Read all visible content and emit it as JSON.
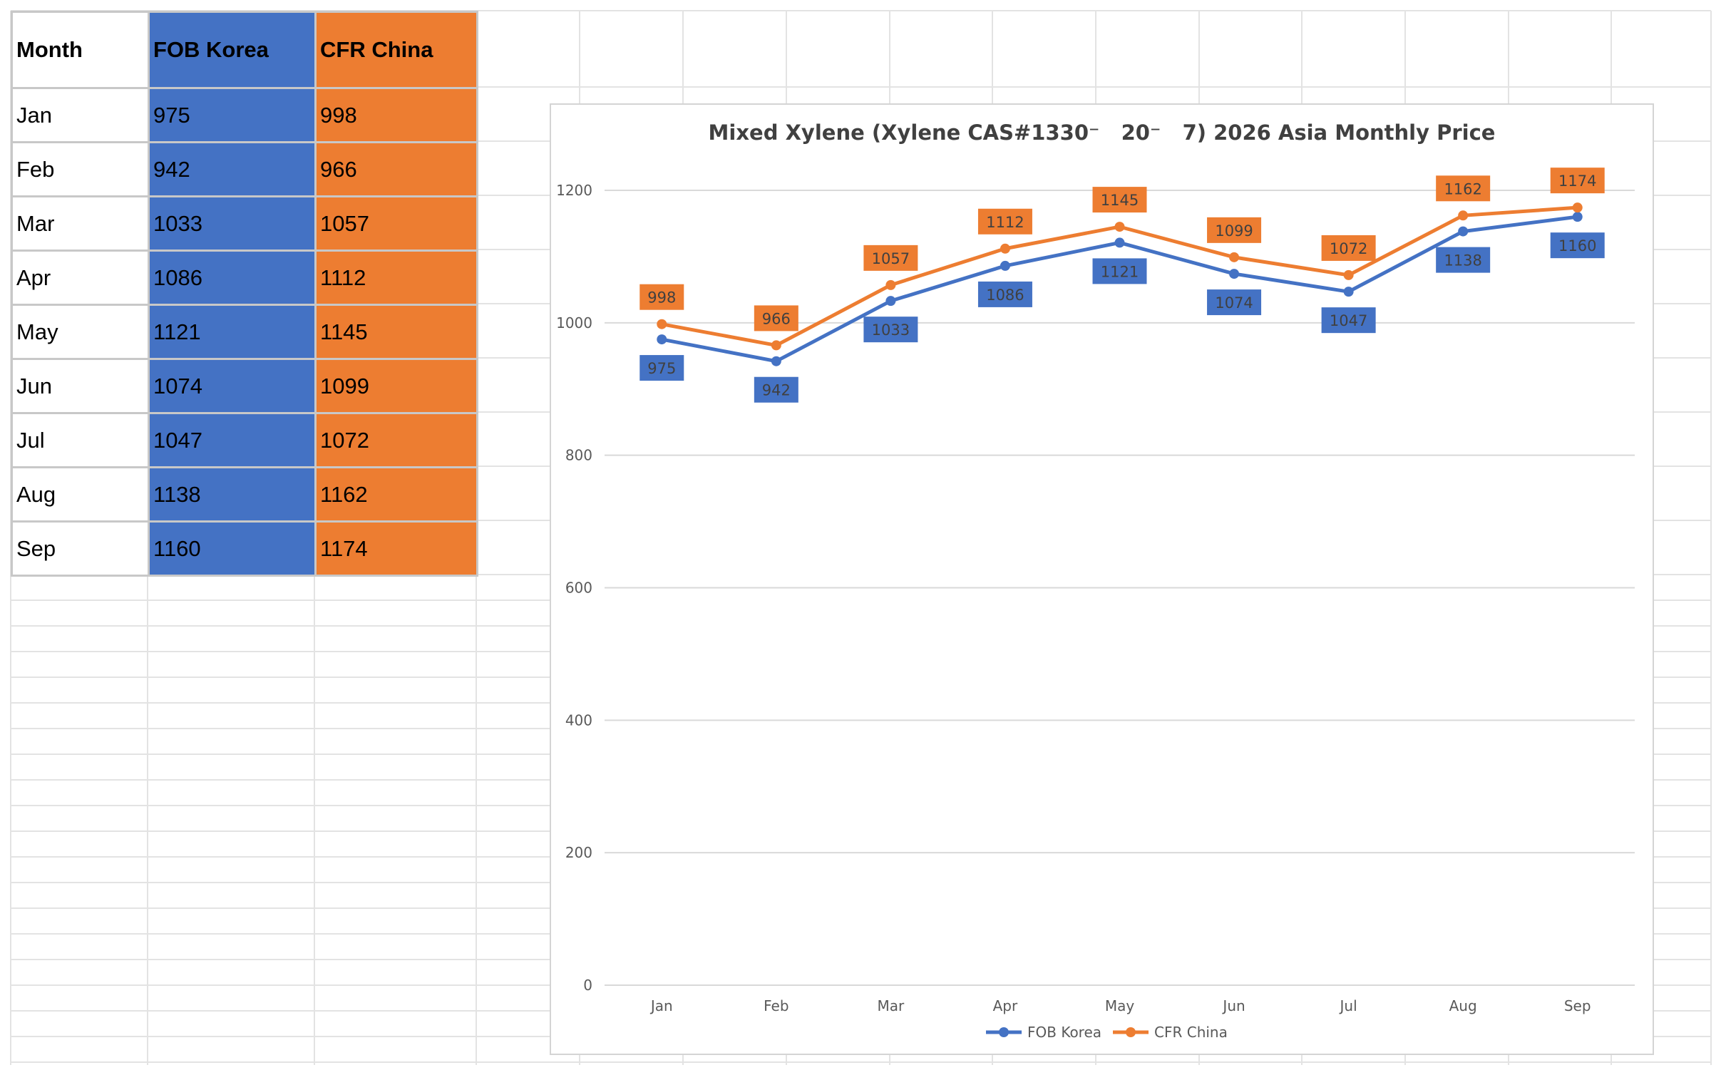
{
  "table": {
    "headers": [
      "Month",
      "FOB Korea",
      "CFR China"
    ],
    "rows": [
      [
        "Jan",
        "975",
        "998"
      ],
      [
        "Feb",
        "942",
        "966"
      ],
      [
        "Mar",
        "1033",
        "1057"
      ],
      [
        "Apr",
        "1086",
        "1112"
      ],
      [
        "May",
        "1121",
        "1145"
      ],
      [
        "Jun",
        "1074",
        "1099"
      ],
      [
        "Jul",
        "1047",
        "1072"
      ],
      [
        "Aug",
        "1138",
        "1162"
      ],
      [
        "Sep",
        "1160",
        "1174"
      ]
    ]
  },
  "chart_data": {
    "type": "line",
    "title": "Mixed Xylene (Xylene CAS#1330⁻   20⁻   7) 2026 Asia Monthly Price",
    "categories": [
      "Jan",
      "Feb",
      "Mar",
      "Apr",
      "May",
      "Jun",
      "Jul",
      "Aug",
      "Sep"
    ],
    "series": [
      {
        "name": "FOB Korea",
        "values": [
          975,
          942,
          1033,
          1086,
          1121,
          1074,
          1047,
          1138,
          1160
        ],
        "color": "#4472c4"
      },
      {
        "name": "CFR China",
        "values": [
          998,
          966,
          1057,
          1112,
          1145,
          1099,
          1072,
          1162,
          1174
        ],
        "color": "#ed7d31"
      }
    ],
    "yticks": [
      0,
      200,
      400,
      600,
      800,
      1000,
      1200
    ],
    "ylim": [
      0,
      1200
    ],
    "grid": true,
    "legend": "bottom",
    "data_labels": true
  },
  "colors": {
    "fob": "#4472c4",
    "cfr": "#ed7d31",
    "gridline": "#d9d9d9",
    "axis_text": "#595959",
    "sheet_grid": "#e3e3e3"
  }
}
